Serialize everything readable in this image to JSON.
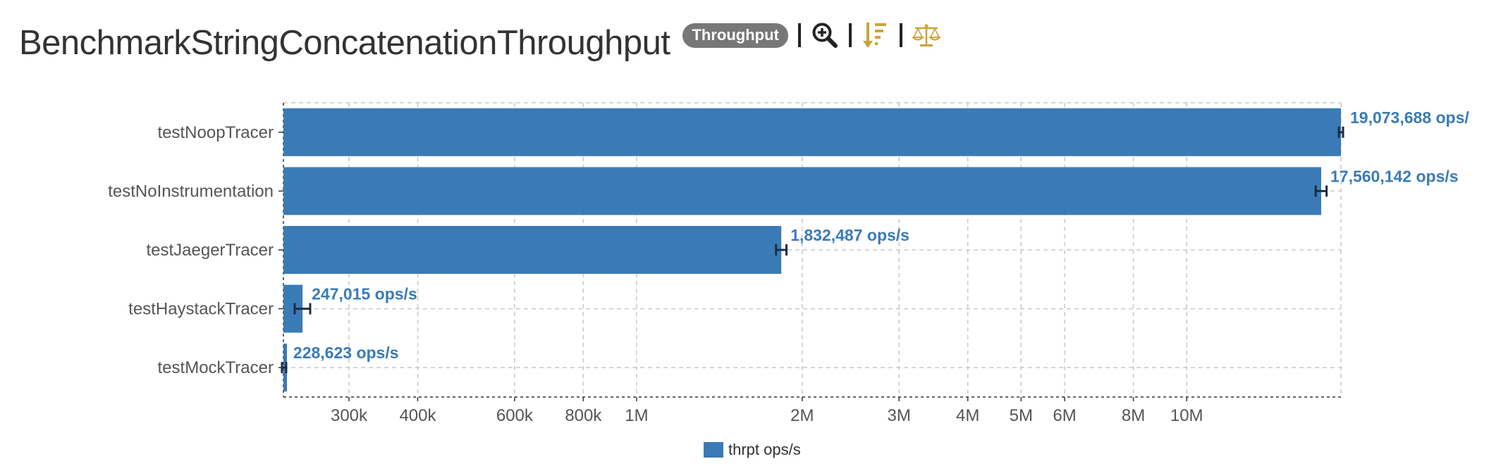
{
  "header": {
    "title": "BenchmarkStringConcatenationThroughput",
    "badge": "Throughput",
    "tools": [
      {
        "icon": "zoom-in-icon"
      },
      {
        "icon": "sort-descending-icon"
      },
      {
        "icon": "balance-scale-icon"
      }
    ]
  },
  "colors": {
    "bar": "#3a7bb6",
    "label": "#3a7bb6",
    "error_bar": "#1a2e44",
    "grid": "#c8c8c8",
    "tool_gold": "#c9a43a",
    "tool_dark": "#222222"
  },
  "chart_data": {
    "type": "bar",
    "orientation": "horizontal",
    "scale": "log",
    "categories": [
      "testNoopTracer",
      "testNoInstrumentation",
      "testJaegerTracer",
      "testHaystackTracer",
      "testMockTracer"
    ],
    "series": [
      {
        "name": "thrpt ops/s",
        "values": [
          19073688,
          17560142,
          1832487,
          247015,
          228623
        ],
        "labels": [
          "19,073,688 ops/",
          "17,560,142 ops/s",
          "1,832,487 ops/s",
          "247,015 ops/s",
          "228,623 ops/s"
        ],
        "errors": [
          60000,
          400000,
          40000,
          8000,
          3000
        ]
      }
    ],
    "xlim": [
      228000,
      19073688
    ],
    "xticks": [
      300000,
      400000,
      600000,
      800000,
      1000000,
      2000000,
      3000000,
      4000000,
      5000000,
      6000000,
      8000000,
      10000000
    ],
    "xtick_labels": [
      "300k",
      "400k",
      "600k",
      "800k",
      "1M",
      "2M",
      "3M",
      "4M",
      "5M",
      "6M",
      "8M",
      "10M"
    ],
    "grid": true,
    "legend_position": "bottom-center"
  }
}
